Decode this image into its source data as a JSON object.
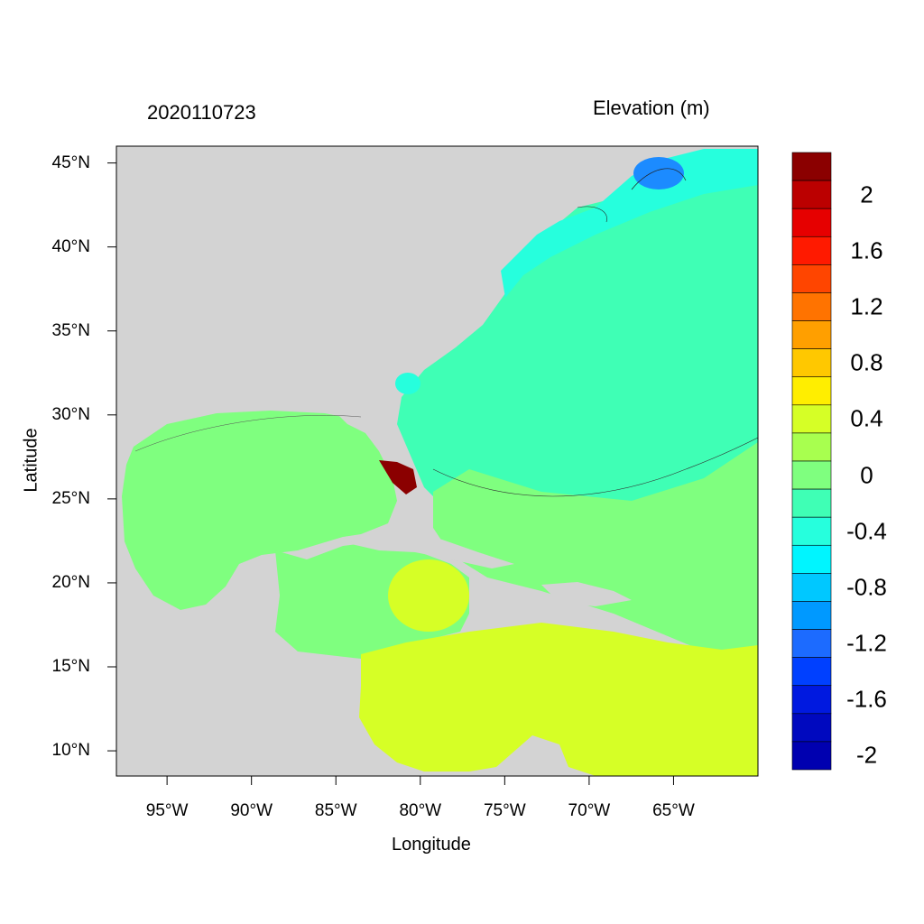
{
  "figure": {
    "timestamp_title": "2020110723",
    "variable_title": "Elevation (m)",
    "xlabel": "Longitude",
    "ylabel": "Latitude"
  },
  "map": {
    "lon_range": [
      -98,
      -60
    ],
    "lat_range": [
      8.5,
      46
    ],
    "land_color": "#d3d3d3",
    "ocean_fill_colors": {
      "gulf_and_western_caribbean": "#7fff7f",
      "eastern_caribbean": "#d6ff26",
      "open_atlantic": "#3fffb5",
      "northern_shelf": "#26ffdd",
      "gulf_of_maine_low": "#1c8bff",
      "florida_surge": "#8b0000"
    }
  },
  "x_ticks": [
    {
      "lon": -95,
      "label": "95°W"
    },
    {
      "lon": -90,
      "label": "90°W"
    },
    {
      "lon": -85,
      "label": "85°W"
    },
    {
      "lon": -80,
      "label": "80°W"
    },
    {
      "lon": -75,
      "label": "75°W"
    },
    {
      "lon": -70,
      "label": "70°W"
    },
    {
      "lon": -65,
      "label": "65°W"
    }
  ],
  "y_ticks": [
    {
      "lat": 45,
      "label": "45°N"
    },
    {
      "lat": 40,
      "label": "40°N"
    },
    {
      "lat": 35,
      "label": "35°N"
    },
    {
      "lat": 30,
      "label": "30°N"
    },
    {
      "lat": 25,
      "label": "25°N"
    },
    {
      "lat": 20,
      "label": "20°N"
    },
    {
      "lat": 15,
      "label": "15°N"
    },
    {
      "lat": 10,
      "label": "10°N"
    }
  ],
  "colorbar": {
    "colors_top_to_bottom": [
      "#8b0000",
      "#bb0000",
      "#e60000",
      "#ff1a00",
      "#ff4500",
      "#ff7300",
      "#ff9f00",
      "#ffc800",
      "#ffee00",
      "#d6ff26",
      "#a8ff4f",
      "#7fff7f",
      "#3fffb5",
      "#26ffdd",
      "#00f5ff",
      "#00c8ff",
      "#0099ff",
      "#1c6bff",
      "#0040ff",
      "#0019e0",
      "#0009bf",
      "#0000b0"
    ],
    "labels": [
      {
        "value": 2,
        "text": "2"
      },
      {
        "value": 1.6,
        "text": "1.6"
      },
      {
        "value": 1.2,
        "text": "1.2"
      },
      {
        "value": 0.8,
        "text": "0.8"
      },
      {
        "value": 0.4,
        "text": "0.4"
      },
      {
        "value": 0,
        "text": "0"
      },
      {
        "value": -0.4,
        "text": "-0.4"
      },
      {
        "value": -0.8,
        "text": "-0.8"
      },
      {
        "value": -1.2,
        "text": "-1.2"
      },
      {
        "value": -1.6,
        "text": "-1.6"
      },
      {
        "value": -2,
        "text": "-2"
      }
    ]
  }
}
